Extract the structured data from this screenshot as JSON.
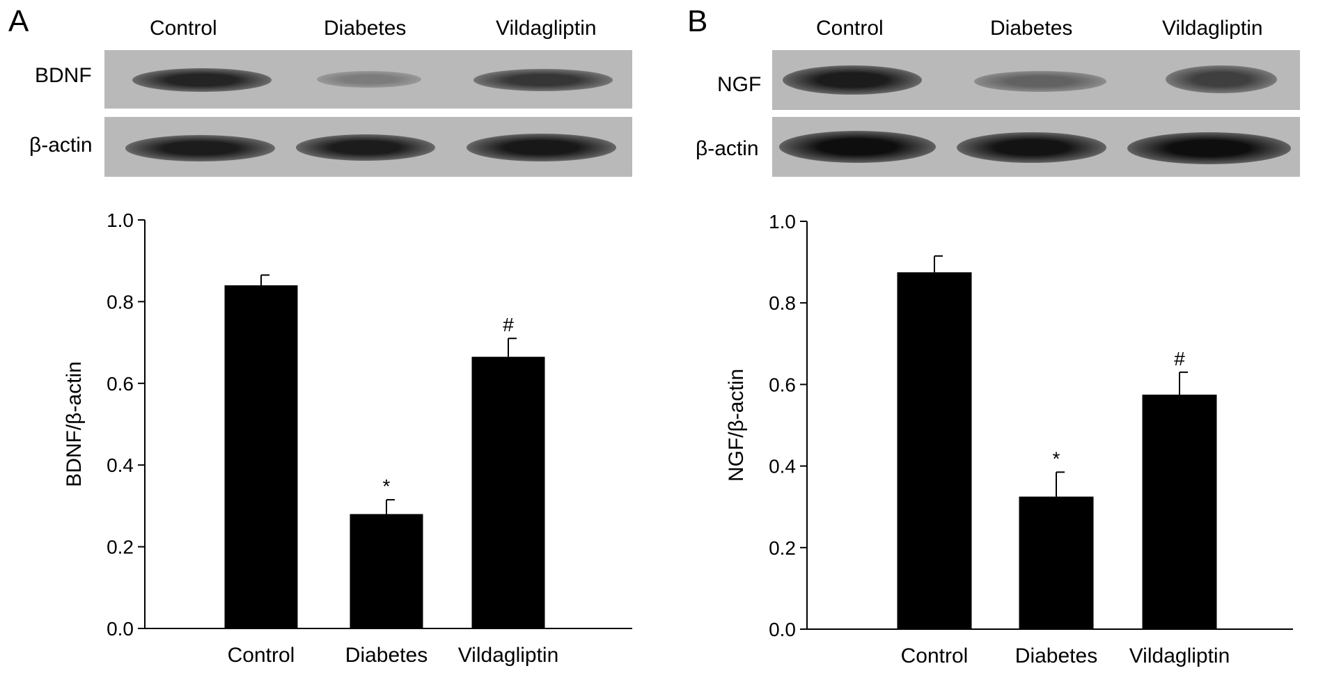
{
  "panels": [
    {
      "letter": "A",
      "blot": {
        "lanes": [
          "Control",
          "Diabetes",
          "Vildagliptin"
        ],
        "rows": [
          {
            "label": "BDNF",
            "band_intensity": [
              0.85,
              0.35,
              0.75
            ]
          },
          {
            "label": "β-actin",
            "band_intensity": [
              0.9,
              0.9,
              0.92
            ]
          }
        ]
      }
    },
    {
      "letter": "B",
      "blot": {
        "lanes": [
          "Control",
          "Diabetes",
          "Vildagliptin"
        ],
        "rows": [
          {
            "label": "NGF",
            "band_intensity": [
              0.9,
              0.5,
              0.7
            ]
          },
          {
            "label": "β-actin",
            "band_intensity": [
              0.98,
              0.95,
              0.98
            ]
          }
        ]
      }
    }
  ],
  "chart_data": [
    {
      "type": "bar",
      "categories": [
        "Control",
        "Diabetes",
        "Vildagliptin"
      ],
      "values": [
        0.84,
        0.28,
        0.665
      ],
      "errors": [
        0.025,
        0.035,
        0.045
      ],
      "annotations": [
        "",
        "*",
        "#"
      ],
      "ylabel": "BDNF/β-actin",
      "xlabel": "",
      "ylim": [
        0.0,
        1.0
      ],
      "yticks": [
        "0.0",
        "0.2",
        "0.4",
        "0.6",
        "0.8",
        "1.0"
      ],
      "bar_color": "#000000"
    },
    {
      "type": "bar",
      "categories": [
        "Control",
        "Diabetes",
        "Vildagliptin"
      ],
      "values": [
        0.875,
        0.325,
        0.575
      ],
      "errors": [
        0.04,
        0.06,
        0.055
      ],
      "annotations": [
        "",
        "*",
        "#"
      ],
      "ylabel": "NGF/β-actin",
      "xlabel": "",
      "ylim": [
        0.0,
        1.0
      ],
      "yticks": [
        "0.0",
        "0.2",
        "0.4",
        "0.6",
        "0.8",
        "1.0"
      ],
      "bar_color": "#000000"
    }
  ]
}
